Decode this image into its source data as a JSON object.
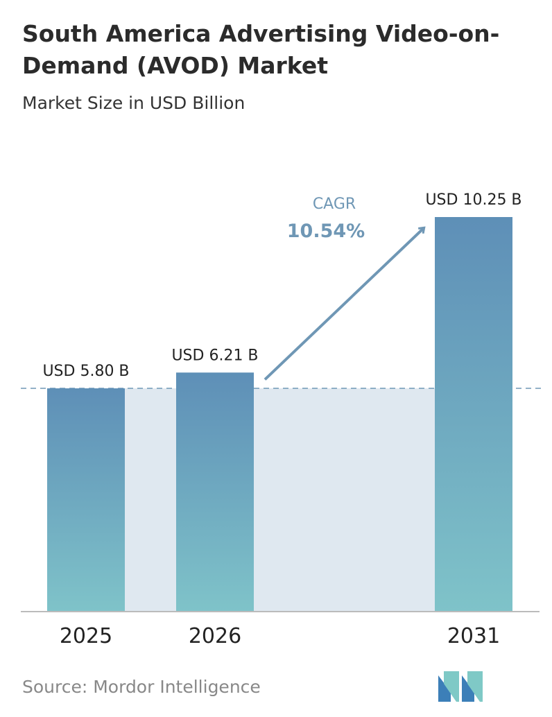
{
  "header": {
    "title": "South America Advertising Video-on-Demand (AVOD) Market",
    "subtitle": "Market Size in USD Billion"
  },
  "chart_data": {
    "type": "bar",
    "categories": [
      "2025",
      "2026",
      "2031"
    ],
    "values": [
      5.8,
      6.21,
      10.25
    ],
    "data_labels": [
      "USD 5.80 B",
      "USD 6.21 B",
      "USD 10.25 B"
    ],
    "title": "South America Advertising Video-on-Demand (AVOD) Market",
    "subtitle": "Market Size in USD Billion",
    "xlabel": "",
    "ylabel": "",
    "ylim": [
      0,
      10.25
    ],
    "grid": false,
    "annotation": {
      "label": "CAGR",
      "value": "10.54%"
    },
    "colors": {
      "bar_top": "#5e8fb7",
      "bar_bottom": "#7fc3c9",
      "band": "#dfe8f0",
      "dashed_line": "#6f97b5",
      "arrow": "#6f97b5",
      "cagr_text": "#6f97b5"
    }
  },
  "footer": {
    "source": "Source: Mordor Intelligence",
    "logo_icon": "mordor-intelligence-logo-icon"
  }
}
